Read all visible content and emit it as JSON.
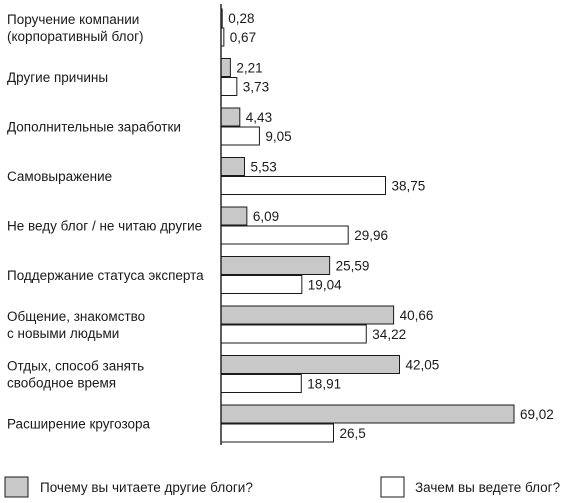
{
  "chart_data": {
    "type": "bar",
    "orientation": "horizontal",
    "categories": [
      [
        "Поручение компании",
        "(корпоративный блог)"
      ],
      [
        "Другие причины"
      ],
      [
        "Дополнительные заработки"
      ],
      [
        "Самовыражение"
      ],
      [
        "Не веду блог / не читаю другие"
      ],
      [
        "Поддержание статуса эксперта"
      ],
      [
        "Общение, знакомство",
        "с новыми людьми"
      ],
      [
        "Отдых, способ занять",
        "свободное время"
      ],
      [
        "Расширение кругозора"
      ]
    ],
    "series": [
      {
        "name": "Почему вы читаете другие блоги?",
        "color": "#c8c8c8",
        "values": [
          0.28,
          2.21,
          4.43,
          5.53,
          6.09,
          25.59,
          40.66,
          42.05,
          69.02
        ],
        "labels": [
          "0,28",
          "2,21",
          "4,43",
          "5,53",
          "6,09",
          "25,59",
          "40,66",
          "42,05",
          "69,02"
        ]
      },
      {
        "name": "Зачем вы ведете блог?",
        "color": "#ffffff",
        "values": [
          0.67,
          3.73,
          9.05,
          38.75,
          29.96,
          19.04,
          34.22,
          18.91,
          26.5
        ],
        "labels": [
          "0,67",
          "3,73",
          "9,05",
          "38,75",
          "29,96",
          "19,04",
          "34,22",
          "18,91",
          "26,5"
        ]
      }
    ],
    "xlim": [
      0,
      72
    ],
    "legend_position": "bottom",
    "grid": false
  }
}
